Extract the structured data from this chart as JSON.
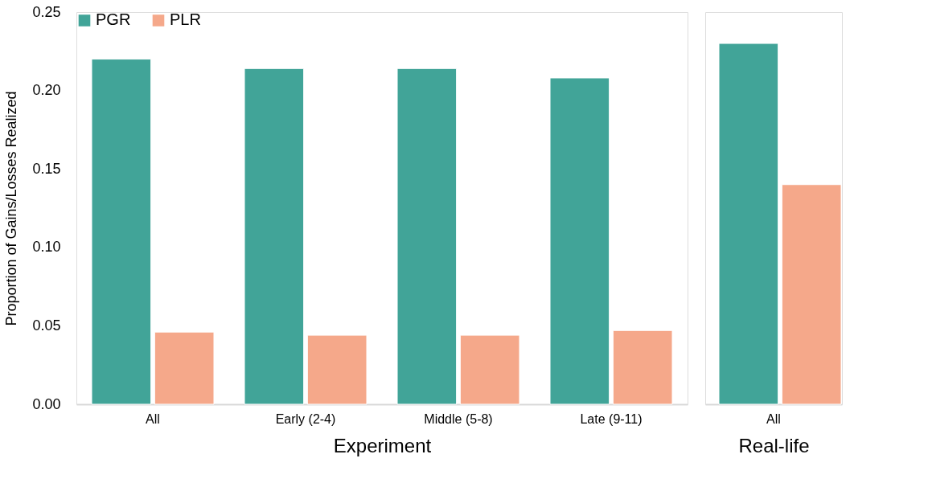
{
  "chart_data": [
    {
      "type": "bar",
      "categories": [
        "All",
        "Early (2-4)",
        "Middle (5-8)",
        "Late (9-11)"
      ],
      "xlabel": "Experiment",
      "ylabel": "Proportion of Gains/Losses Realized",
      "series": [
        {
          "name": "PGR",
          "color": "#41a498",
          "values": [
            0.22,
            0.214,
            0.214,
            0.208
          ]
        },
        {
          "name": "PLR",
          "color": "#f5a88a",
          "values": [
            0.046,
            0.044,
            0.044,
            0.047
          ]
        }
      ],
      "ylim": [
        0,
        0.25
      ],
      "yticks": [
        {
          "value": 0,
          "label": "0.00"
        },
        {
          "value": 0.05,
          "label": "0.05"
        },
        {
          "value": 0.1,
          "label": "0.10"
        },
        {
          "value": 0.15,
          "label": "0.15"
        },
        {
          "value": 0.2,
          "label": "0.20"
        },
        {
          "value": 0.25,
          "label": "0.25"
        }
      ],
      "grid": false,
      "legend": "top left"
    },
    {
      "type": "bar",
      "categories": [
        "All"
      ],
      "xlabel": "Real-life",
      "series": [
        {
          "color": "#41a498",
          "values": [
            0.23
          ]
        },
        {
          "color": "#f5a88a",
          "values": [
            0.14
          ]
        }
      ],
      "ylim": [
        0,
        0.25
      ],
      "grid": false,
      "legend": false,
      "tick_labels": "x"
    }
  ]
}
